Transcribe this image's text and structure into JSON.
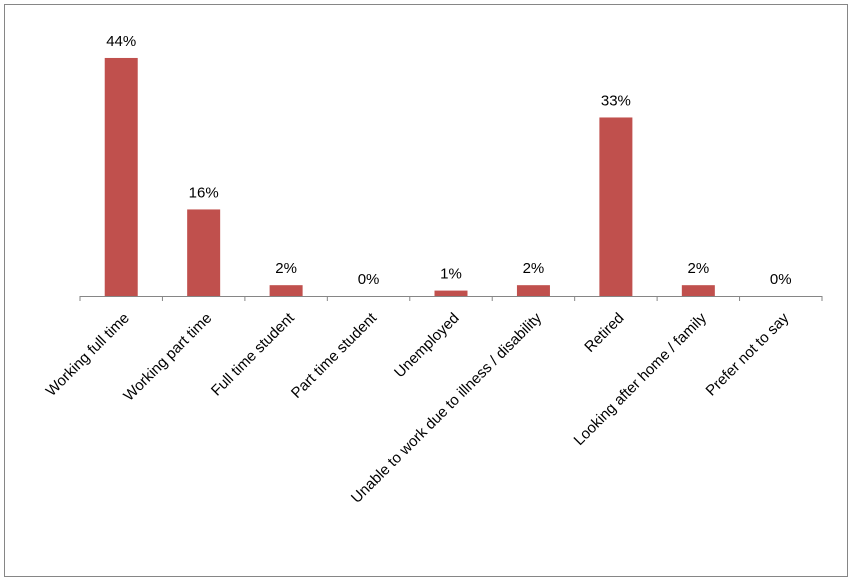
{
  "chart_data": {
    "type": "bar",
    "categories": [
      "Working full time",
      "Working part time",
      "Full time student",
      "Part time student",
      "Unemployed",
      "Unable to work due to illness / disability",
      "Retired",
      "Looking after home / family",
      "Prefer not to say"
    ],
    "values": [
      44,
      16,
      2,
      0,
      1,
      2,
      33,
      2,
      0
    ],
    "value_labels": [
      "44%",
      "16%",
      "2%",
      "0%",
      "1%",
      "2%",
      "33%",
      "2%",
      "0%"
    ],
    "color": "#c0504d"
  }
}
